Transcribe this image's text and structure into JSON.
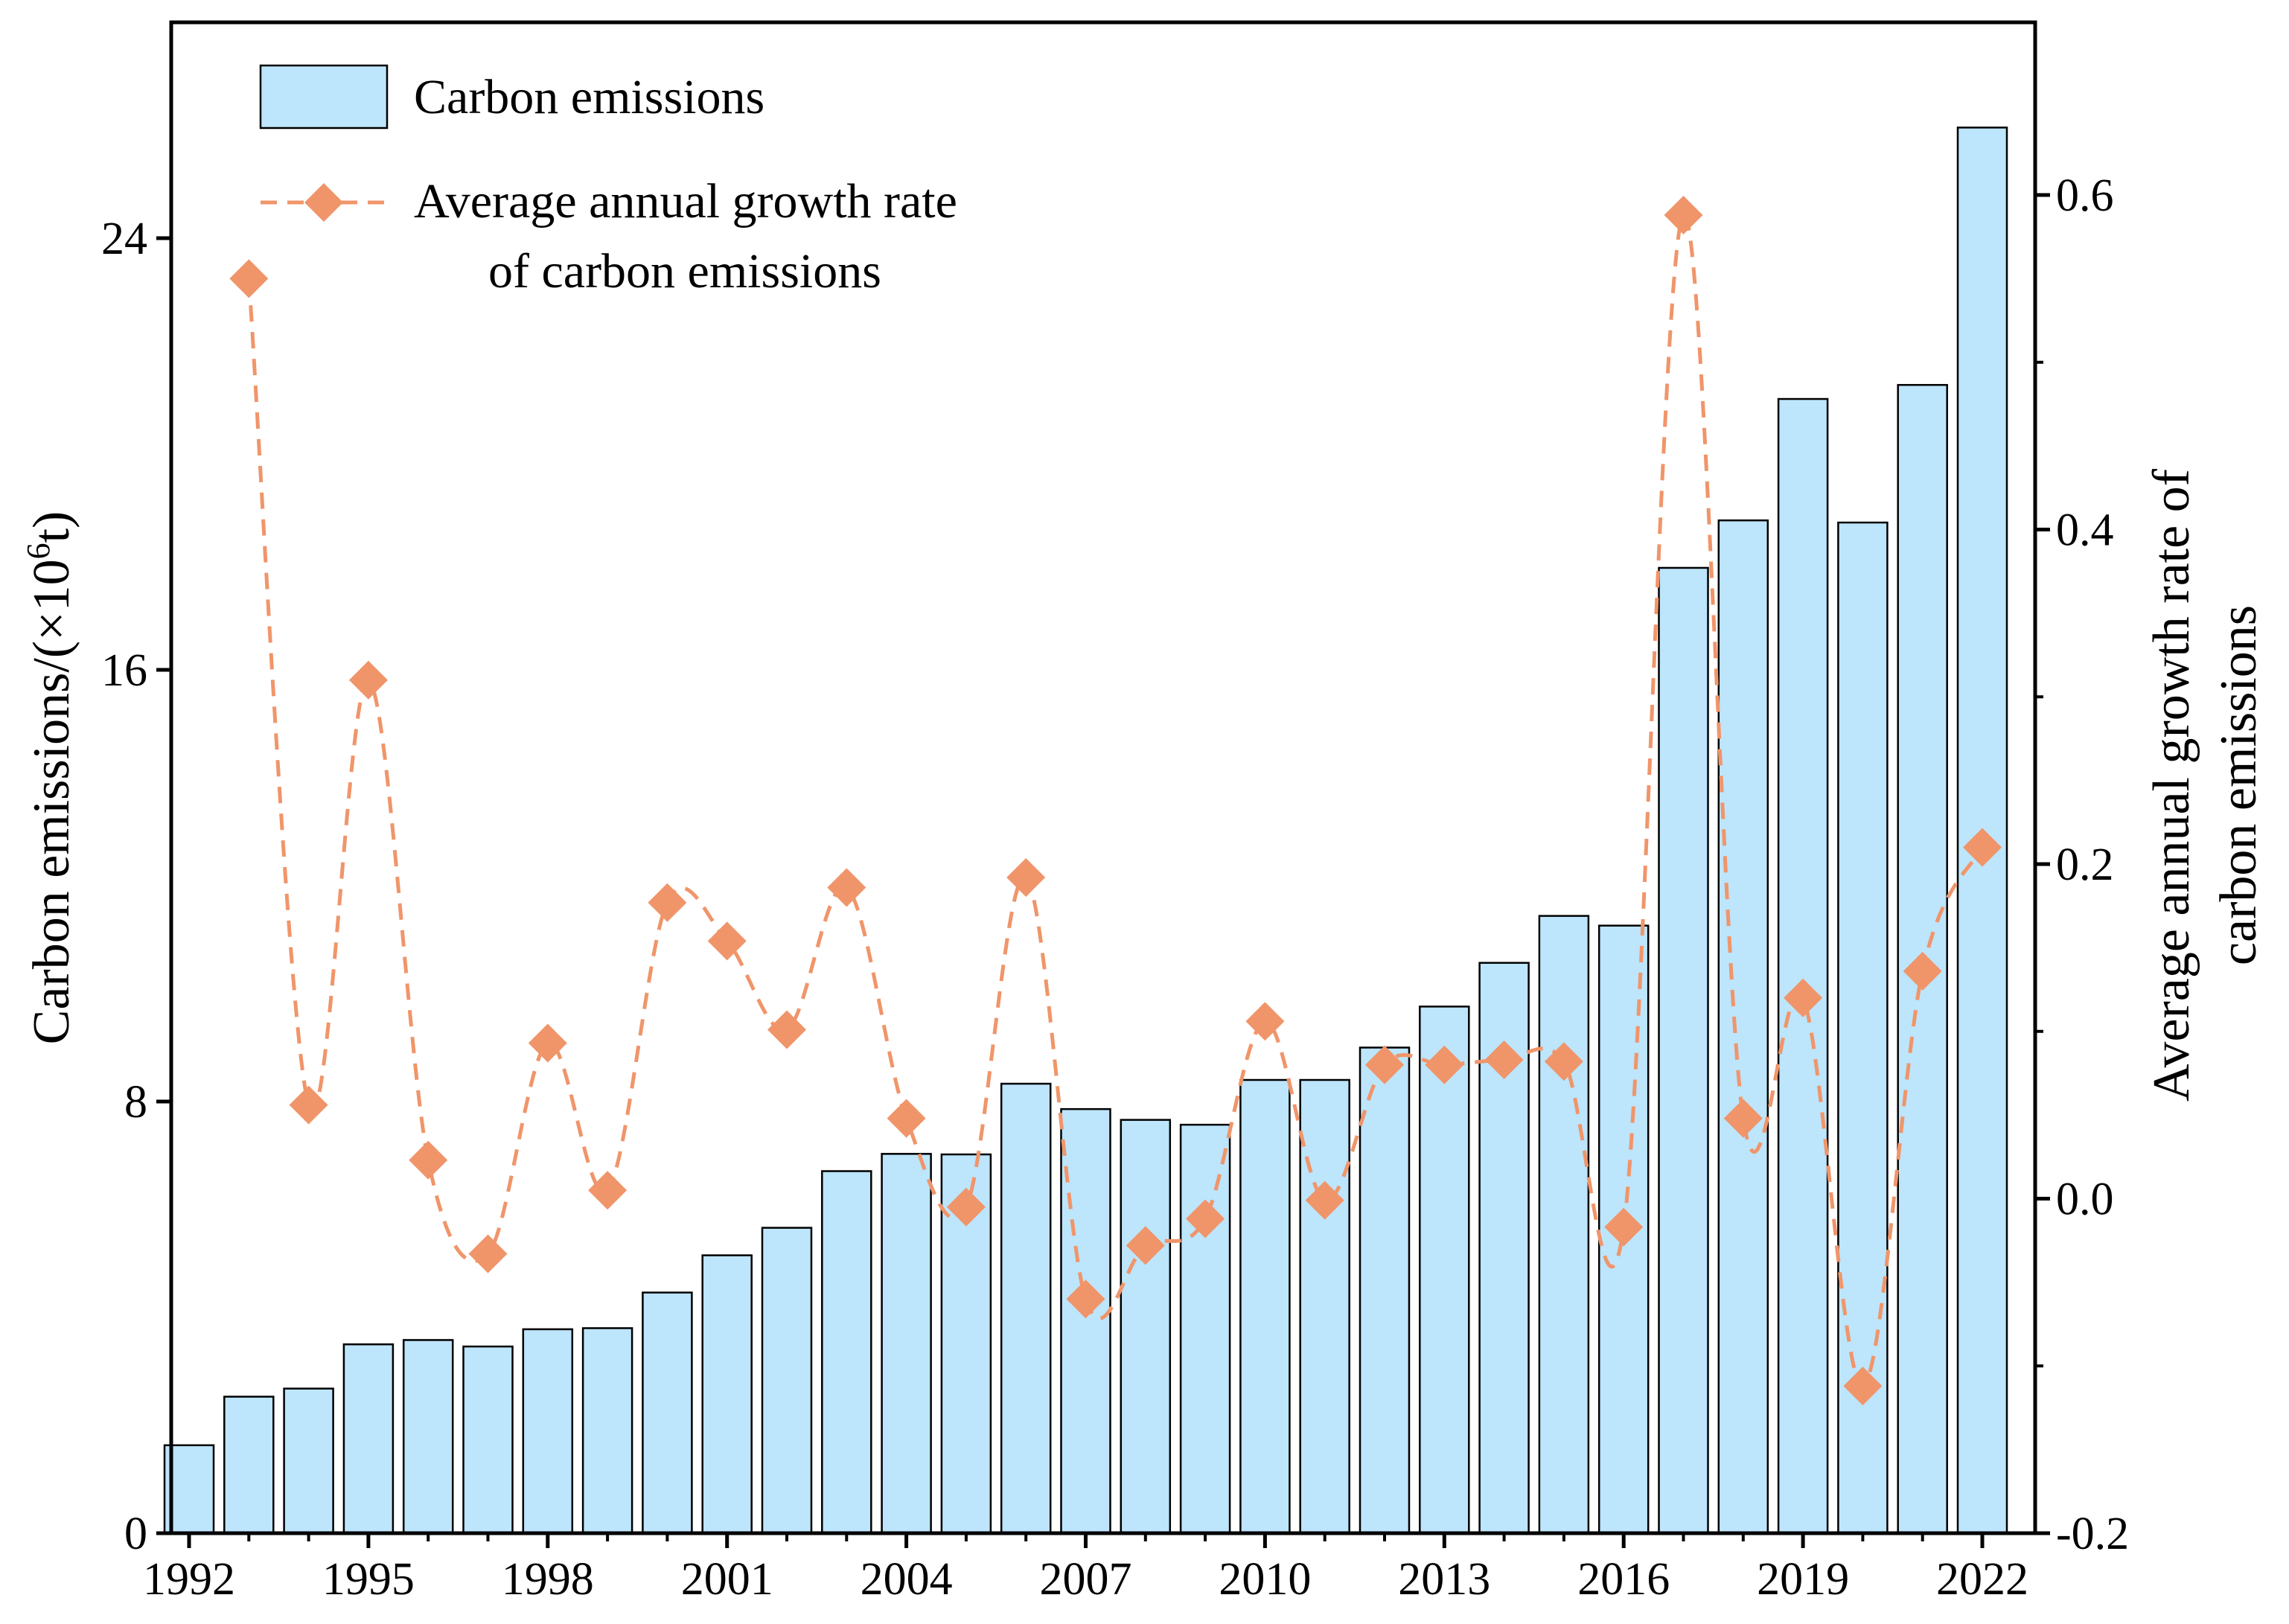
{
  "chart_data": {
    "type": "bar",
    "x": [
      1992,
      1993,
      1994,
      1995,
      1996,
      1997,
      1998,
      1999,
      2000,
      2001,
      2002,
      2003,
      2004,
      2005,
      2006,
      2007,
      2008,
      2009,
      2010,
      2011,
      2012,
      2013,
      2014,
      2015,
      2016,
      2017,
      2018,
      2019,
      2020,
      2021,
      2022
    ],
    "x_tick_labels": [
      "1992",
      "1995",
      "1998",
      "2001",
      "2004",
      "2007",
      "2010",
      "2013",
      "2016",
      "2019",
      "2022"
    ],
    "series": [
      {
        "name": "Carbon emissions",
        "type": "bar",
        "axis": "left",
        "color": "#bde5fb",
        "values": [
          1.63,
          2.53,
          2.68,
          3.5,
          3.58,
          3.46,
          3.78,
          3.8,
          4.46,
          5.15,
          5.66,
          6.71,
          7.03,
          7.02,
          8.33,
          7.86,
          7.66,
          7.57,
          8.4,
          8.4,
          9.0,
          9.76,
          10.57,
          11.44,
          11.26,
          17.89,
          18.77,
          21.02,
          18.73,
          21.28,
          26.05
        ]
      },
      {
        "name": "Average annual growth rate\nof  carbon emissions",
        "name_lines": [
          "Average annual growth rate",
          "of  carbon emissions"
        ],
        "type": "line",
        "axis": "right",
        "style": "dashed",
        "marker": "diamond",
        "color": "#f0956a",
        "values": [
          null,
          0.55,
          0.056,
          0.31,
          0.023,
          -0.033,
          0.093,
          0.005,
          0.177,
          0.154,
          0.101,
          0.186,
          0.048,
          -0.005,
          0.192,
          -0.06,
          -0.028,
          -0.012,
          0.106,
          -0.001,
          0.08,
          0.08,
          0.083,
          0.082,
          -0.017,
          0.588,
          0.048,
          0.12,
          -0.112,
          0.136,
          0.21
        ]
      }
    ],
    "y_left": {
      "label_prefix": "Carbon emissions/(×10",
      "label_exp": "6",
      "label_suffix": "t)",
      "range": [
        0,
        28
      ],
      "ticks": [
        0,
        8,
        16,
        24
      ],
      "tick_labels": [
        "0",
        "8",
        "16",
        "24"
      ]
    },
    "y_right": {
      "label_lines": [
        "Average annual growth rate of",
        "carbon emissions"
      ],
      "range": [
        -0.2,
        0.6
      ],
      "ticks": [
        -0.2,
        0.0,
        0.2,
        0.4,
        0.6
      ],
      "tick_labels": [
        "-0.2",
        "0.0",
        "0.2",
        "0.4",
        "0.6"
      ]
    },
    "x_range": [
      1991.7,
      1992.3
    ],
    "grid": false,
    "legend_position": "top-left"
  }
}
